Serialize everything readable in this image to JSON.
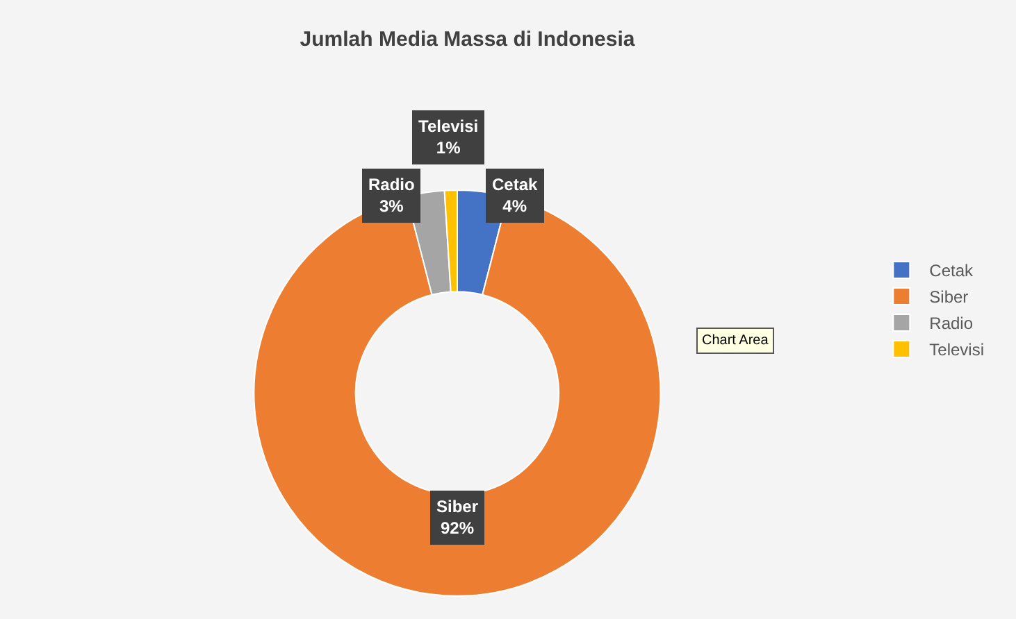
{
  "chart_data": {
    "type": "donut",
    "title": "Jumlah Media Massa di Indonesia",
    "categories": [
      "Cetak",
      "Siber",
      "Radio",
      "Televisi"
    ],
    "values": [
      4,
      92,
      3,
      1
    ],
    "colors": [
      "#4472c4",
      "#ed7d31",
      "#a5a5a5",
      "#ffc000"
    ],
    "value_labels": [
      "4%",
      "92%",
      "3%",
      "1%"
    ],
    "legend": "right",
    "annotations": [
      "Chart Area"
    ]
  }
}
